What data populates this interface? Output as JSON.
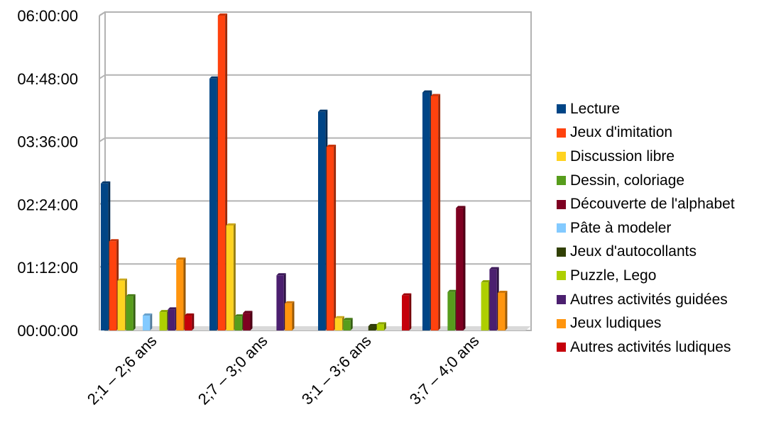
{
  "chart_data": {
    "type": "bar",
    "categories": [
      "2;1 – 2;6 ans",
      "2;7 – 3;0 ans",
      "3;1 – 3;6 ans",
      "3;7 – 4;0 ans"
    ],
    "y_ticks": [
      "00:00:00",
      "01:12:00",
      "02:24:00",
      "03:36:00",
      "04:48:00",
      "06:00:00"
    ],
    "ylim_minutes": [
      0,
      360
    ],
    "y_unit": "minutes",
    "legend_position": "right",
    "grid": true,
    "series": [
      {
        "name": "Lecture",
        "color": "#004586",
        "values": [
          168,
          288,
          250,
          272
        ]
      },
      {
        "name": "Jeux d'imitation",
        "color": "#ff420e",
        "values": [
          102,
          360,
          210,
          268
        ]
      },
      {
        "name": "Discussion libre",
        "color": "#ffd320",
        "values": [
          57,
          120,
          14,
          null
        ]
      },
      {
        "name": "Dessin, coloriage",
        "color": "#579d1c",
        "values": [
          39,
          16,
          12,
          44
        ]
      },
      {
        "name": "Découverte de l'alphabet",
        "color": "#7e0021",
        "values": [
          null,
          20,
          null,
          140
        ]
      },
      {
        "name": "Pâte à modeler",
        "color": "#83caff",
        "values": [
          17,
          null,
          null,
          null
        ]
      },
      {
        "name": "Jeux d'autocollants",
        "color": "#314004",
        "values": [
          null,
          null,
          5,
          null
        ]
      },
      {
        "name": "Puzzle, Lego",
        "color": "#aecf00",
        "values": [
          21,
          null,
          7,
          55
        ]
      },
      {
        "name": "Autres activités guidées",
        "color": "#4b1f6f",
        "values": [
          24,
          63,
          null,
          70
        ]
      },
      {
        "name": "Jeux ludiques",
        "color": "#ff950e",
        "values": [
          81,
          31,
          null,
          43
        ]
      },
      {
        "name": "Autres activités ludiques",
        "color": "#c5000b",
        "values": [
          17,
          null,
          40,
          null
        ]
      }
    ]
  }
}
